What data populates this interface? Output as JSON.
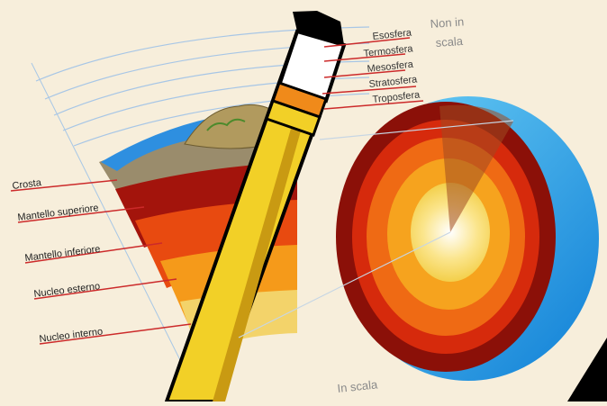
{
  "atmosphere_layers": [
    "Esosfera",
    "Termosfera",
    "Mesosfera",
    "Stratosfera",
    "Troposfera"
  ],
  "earth_layers": [
    "Crosta",
    "Mantello superiore",
    "Mantello inferiore",
    "Nucleo esterno",
    "Nucleo interno"
  ],
  "scale_notes": {
    "not_to_scale_line1": "Non in",
    "not_to_scale_line2": "scala",
    "to_scale": "In scala"
  },
  "colors": {
    "background": "#f7eedb",
    "label_line": "#cc2a2a",
    "sky_line": "#8fb7de",
    "crust": "#9a8c6c",
    "upper_mantle": "#a3140c",
    "lower_mantle": "#e84a10",
    "outer_core": "#f59a1a",
    "inner_core": "#fbe08a",
    "ocean": "#1e8ee0",
    "pencil": "#f2d027"
  }
}
